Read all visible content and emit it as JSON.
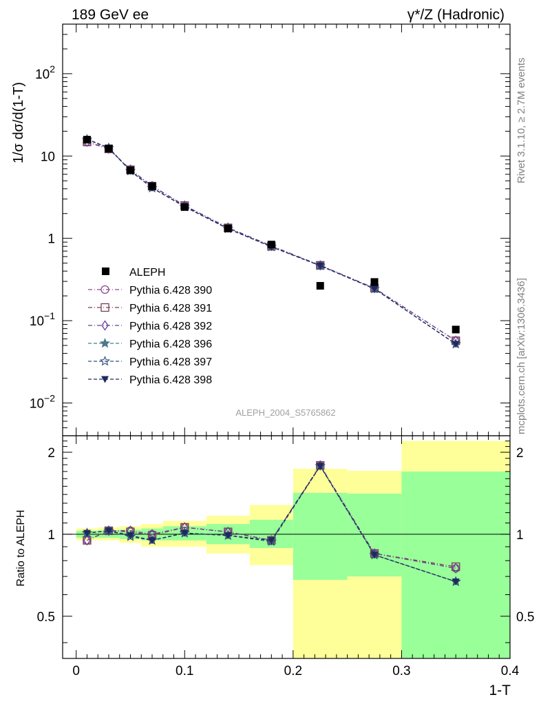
{
  "header": {
    "left": "189 GeV ee",
    "right": "γ*/Z (Hadronic)"
  },
  "side": {
    "rivet": "Rivet 3.1.10, ≥ 2.7M events",
    "mcplots": "mcplots.cern.ch [arXiv:1306.3436]"
  },
  "watermark": "ALEPH_2004_S5765862",
  "chart_data": [
    {
      "type": "scatter",
      "ylabel": "1/σ  dσ/d(1-T)",
      "yscale": "log",
      "ylim": [
        0.004,
        400
      ],
      "xlim": [
        -0.0125,
        0.4
      ],
      "yticks": [
        {
          "v": 0.01,
          "base": "10",
          "exp": "−2"
        },
        {
          "v": 0.1,
          "base": "10",
          "exp": "−1"
        },
        {
          "v": 1,
          "base": "1",
          "exp": ""
        },
        {
          "v": 10,
          "base": "10",
          "exp": ""
        },
        {
          "v": 100,
          "base": "10",
          "exp": "2"
        }
      ],
      "x": [
        0.01,
        0.03,
        0.05,
        0.07,
        0.1,
        0.14,
        0.18,
        0.225,
        0.275,
        0.35
      ],
      "data": {
        "name": "ALEPH",
        "values": [
          15.8,
          12.3,
          6.7,
          4.3,
          2.4,
          1.32,
          0.84,
          0.265,
          0.295,
          0.078
        ],
        "color": "#000000"
      },
      "series": [
        {
          "name": "Pythia 6.428 390",
          "marker": "circle",
          "color": "#8b4a8f",
          "dash": "6,3,1,3",
          "values": [
            14.8,
            12.2,
            6.8,
            4.35,
            2.5,
            1.34,
            0.81,
            0.47,
            0.248,
            0.057
          ]
        },
        {
          "name": "Pythia 6.428 391",
          "marker": "square",
          "color": "#7b3f4f",
          "dash": "6,3,1,3",
          "values": [
            14.8,
            12.2,
            6.8,
            4.3,
            2.5,
            1.34,
            0.8,
            0.47,
            0.248,
            0.057
          ]
        },
        {
          "name": "Pythia 6.428 392",
          "marker": "diamond",
          "color": "#6a3d9a",
          "dash": "6,3,1,3",
          "values": [
            14.9,
            12.3,
            6.85,
            4.3,
            2.5,
            1.35,
            0.81,
            0.47,
            0.248,
            0.057
          ]
        },
        {
          "name": "Pythia 6.428 396",
          "marker": "star",
          "color": "#4a7a8c",
          "dash": "5,3",
          "values": [
            15.9,
            12.5,
            6.6,
            4.1,
            2.42,
            1.31,
            0.79,
            0.465,
            0.244,
            0.052
          ]
        },
        {
          "name": "Pythia 6.428 397",
          "marker": "star-open",
          "color": "#2e4d77",
          "dash": "5,3",
          "values": [
            15.9,
            12.5,
            6.6,
            4.1,
            2.42,
            1.31,
            0.79,
            0.465,
            0.244,
            0.052
          ]
        },
        {
          "name": "Pythia 6.428 398",
          "marker": "triangle-down",
          "color": "#1f2a5c",
          "dash": "5,3",
          "values": [
            16.0,
            12.6,
            6.6,
            4.1,
            2.43,
            1.31,
            0.79,
            0.465,
            0.244,
            0.052
          ]
        }
      ]
    },
    {
      "type": "line",
      "ylabel": "Ratio to ALEPH",
      "xlabel": "1-T",
      "yscale": "log",
      "ylim": [
        0.35,
        2.3
      ],
      "xlim": [
        -0.0125,
        0.4
      ],
      "yticks": [
        0.5,
        1,
        2
      ],
      "xticks": [
        0,
        0.1,
        0.2,
        0.3,
        0.4
      ],
      "xtick_labels": [
        "0",
        "0.1",
        "0.2",
        "0.3",
        "0.4"
      ],
      "bands": {
        "edges": [
          0,
          0.02,
          0.04,
          0.06,
          0.08,
          0.12,
          0.16,
          0.2,
          0.25,
          0.3,
          0.4
        ],
        "yellow_lo": [
          0.95,
          0.95,
          0.93,
          0.9,
          0.9,
          0.85,
          0.77,
          0.35,
          0.35,
          0.35
        ],
        "yellow_hi": [
          1.05,
          1.06,
          1.07,
          1.09,
          1.12,
          1.17,
          1.28,
          1.74,
          1.71,
          2.2
        ],
        "green_lo": [
          0.97,
          0.97,
          0.96,
          0.95,
          0.95,
          0.92,
          0.89,
          0.68,
          0.7,
          0.35
        ],
        "green_hi": [
          1.03,
          1.035,
          1.04,
          1.05,
          1.07,
          1.09,
          1.13,
          1.42,
          1.41,
          1.7
        ],
        "yellow_color": "#ffff99",
        "green_color": "#99ff99"
      },
      "x": [
        0.01,
        0.03,
        0.05,
        0.07,
        0.1,
        0.14,
        0.18,
        0.225,
        0.275,
        0.35
      ],
      "series": [
        {
          "name": "Pythia 6.428 390",
          "values": [
            0.95,
            1.03,
            1.03,
            1.0,
            1.06,
            1.02,
            0.95,
            1.79,
            0.85,
            0.75
          ]
        },
        {
          "name": "Pythia 6.428 391",
          "values": [
            0.95,
            1.03,
            1.02,
            0.99,
            1.06,
            1.02,
            0.95,
            1.79,
            0.85,
            0.76
          ]
        },
        {
          "name": "Pythia 6.428 392",
          "values": [
            0.95,
            1.03,
            1.03,
            1.0,
            1.06,
            1.02,
            0.95,
            1.79,
            0.85,
            0.75
          ]
        },
        {
          "name": "Pythia 6.428 396",
          "values": [
            1.01,
            1.03,
            0.99,
            0.95,
            1.01,
            0.99,
            0.95,
            1.78,
            0.84,
            0.67
          ]
        },
        {
          "name": "Pythia 6.428 397",
          "values": [
            1.01,
            1.03,
            0.98,
            0.95,
            1.01,
            0.99,
            0.94,
            1.78,
            0.84,
            0.67
          ]
        },
        {
          "name": "Pythia 6.428 398",
          "values": [
            1.01,
            1.03,
            0.99,
            0.95,
            1.01,
            0.99,
            0.95,
            1.78,
            0.84,
            0.67
          ]
        }
      ]
    }
  ]
}
